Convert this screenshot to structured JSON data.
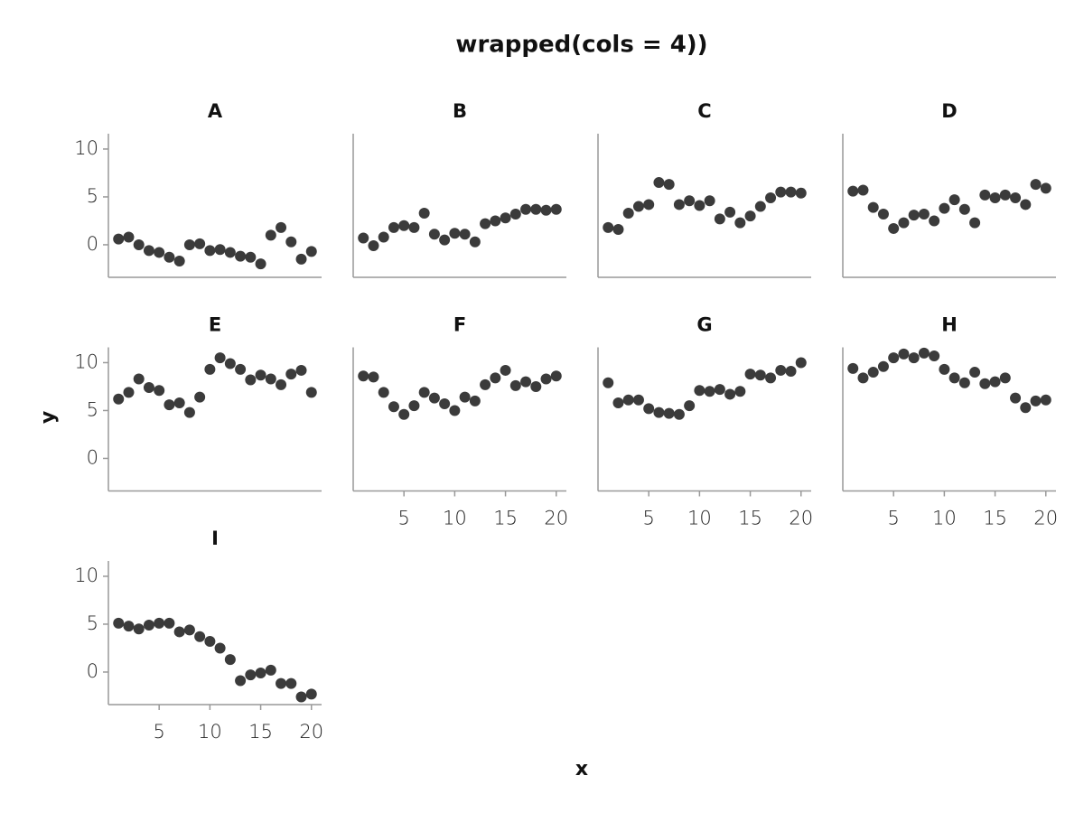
{
  "title": "wrapped(cols = 4))",
  "x_label": "x",
  "y_label": "y",
  "chart_data": [
    {
      "type": "scatter",
      "title": "A",
      "color": "#3b3b3b",
      "xlim": [
        0,
        21
      ],
      "ylim": [
        -3.4,
        11.6
      ],
      "yticks": [
        0,
        5,
        10
      ],
      "x": [
        1,
        2,
        3,
        4,
        5,
        6,
        7,
        8,
        9,
        10,
        11,
        12,
        13,
        14,
        15,
        16,
        17,
        18,
        19,
        20
      ],
      "values": [
        0.6,
        0.8,
        0,
        -0.6,
        -0.8,
        -1.3,
        -1.7,
        0,
        0.1,
        -0.6,
        -0.5,
        -0.8,
        -1.2,
        -1.3,
        -2.0,
        1.0,
        1.8,
        0.3,
        -1.5,
        -0.7
      ]
    },
    {
      "type": "scatter",
      "title": "B",
      "color": "#3b3b3b",
      "xlim": [
        0,
        21
      ],
      "ylim": [
        -3.4,
        11.6
      ],
      "x": [
        1,
        2,
        3,
        4,
        5,
        6,
        7,
        8,
        9,
        10,
        11,
        12,
        13,
        14,
        15,
        16,
        17,
        18,
        19,
        20
      ],
      "values": [
        0.7,
        -0.1,
        0.8,
        1.8,
        2.0,
        1.8,
        3.3,
        1.1,
        0.5,
        1.2,
        1.1,
        0.3,
        2.2,
        2.5,
        2.8,
        3.2,
        3.7,
        3.7,
        3.6,
        3.7
      ]
    },
    {
      "type": "scatter",
      "title": "C",
      "color": "#3b3b3b",
      "xlim": [
        0,
        21
      ],
      "ylim": [
        -3.4,
        11.6
      ],
      "x": [
        1,
        2,
        3,
        4,
        5,
        6,
        7,
        8,
        9,
        10,
        11,
        12,
        13,
        14,
        15,
        16,
        17,
        18,
        19,
        20
      ],
      "values": [
        1.8,
        1.6,
        3.3,
        4.0,
        4.2,
        6.5,
        6.3,
        4.2,
        4.6,
        4.1,
        4.6,
        2.7,
        3.4,
        2.3,
        3.0,
        4.0,
        4.9,
        5.5,
        5.5,
        5.4
      ]
    },
    {
      "type": "scatter",
      "title": "D",
      "color": "#3b3b3b",
      "xlim": [
        0,
        21
      ],
      "ylim": [
        -3.4,
        11.6
      ],
      "x": [
        1,
        2,
        3,
        4,
        5,
        6,
        7,
        8,
        9,
        10,
        11,
        12,
        13,
        14,
        15,
        16,
        17,
        18,
        19,
        20
      ],
      "values": [
        5.6,
        5.7,
        3.9,
        3.2,
        1.7,
        2.3,
        3.1,
        3.2,
        2.5,
        3.8,
        4.7,
        3.7,
        2.3,
        5.2,
        4.9,
        5.2,
        4.9,
        4.2,
        6.3,
        5.9
      ]
    },
    {
      "type": "scatter",
      "title": "E",
      "color": "#3b3b3b",
      "xlim": [
        0,
        21
      ],
      "ylim": [
        -3.4,
        11.6
      ],
      "yticks": [
        0,
        5,
        10
      ],
      "x": [
        1,
        2,
        3,
        4,
        5,
        6,
        7,
        8,
        9,
        10,
        11,
        12,
        13,
        14,
        15,
        16,
        17,
        18,
        19,
        20
      ],
      "values": [
        6.2,
        6.9,
        8.3,
        7.4,
        7.1,
        5.6,
        5.8,
        4.8,
        6.4,
        9.3,
        10.5,
        9.9,
        9.3,
        8.2,
        8.7,
        8.3,
        7.7,
        8.8,
        9.2,
        6.9
      ]
    },
    {
      "type": "scatter",
      "title": "F",
      "color": "#3b3b3b",
      "xlim": [
        0,
        21
      ],
      "ylim": [
        -3.4,
        11.6
      ],
      "xticks": [
        5,
        10,
        15,
        20
      ],
      "x": [
        1,
        2,
        3,
        4,
        5,
        6,
        7,
        8,
        9,
        10,
        11,
        12,
        13,
        14,
        15,
        16,
        17,
        18,
        19,
        20
      ],
      "values": [
        8.6,
        8.5,
        6.9,
        5.4,
        4.6,
        5.5,
        6.9,
        6.3,
        5.7,
        5.0,
        6.4,
        6.0,
        7.7,
        8.4,
        9.2,
        7.6,
        8.0,
        7.5,
        8.3,
        8.6
      ]
    },
    {
      "type": "scatter",
      "title": "G",
      "color": "#3b3b3b",
      "xlim": [
        0,
        21
      ],
      "ylim": [
        -3.4,
        11.6
      ],
      "xticks": [
        5,
        10,
        15,
        20
      ],
      "x": [
        1,
        2,
        3,
        4,
        5,
        6,
        7,
        8,
        9,
        10,
        11,
        12,
        13,
        14,
        15,
        16,
        17,
        18,
        19,
        20
      ],
      "values": [
        7.9,
        5.8,
        6.1,
        6.1,
        5.2,
        4.8,
        4.7,
        4.6,
        5.5,
        7.1,
        7.0,
        7.2,
        6.7,
        7.0,
        8.8,
        8.7,
        8.4,
        9.2,
        9.1,
        10.0
      ]
    },
    {
      "type": "scatter",
      "title": "H",
      "color": "#3b3b3b",
      "xlim": [
        0,
        21
      ],
      "ylim": [
        -3.4,
        11.6
      ],
      "xticks": [
        5,
        10,
        15,
        20
      ],
      "x": [
        1,
        2,
        3,
        4,
        5,
        6,
        7,
        8,
        9,
        10,
        11,
        12,
        13,
        14,
        15,
        16,
        17,
        18,
        19,
        20
      ],
      "values": [
        9.4,
        8.4,
        9.0,
        9.6,
        10.5,
        10.9,
        10.5,
        11.0,
        10.7,
        9.3,
        8.4,
        7.9,
        9.0,
        7.8,
        8.0,
        8.4,
        6.3,
        5.3,
        6.0,
        6.1
      ]
    },
    {
      "type": "scatter",
      "title": "I",
      "color": "#3b3b3b",
      "xlim": [
        0,
        21
      ],
      "ylim": [
        -3.4,
        11.6
      ],
      "yticks": [
        0,
        5,
        10
      ],
      "xticks": [
        5,
        10,
        15,
        20
      ],
      "x": [
        1,
        2,
        3,
        4,
        5,
        6,
        7,
        8,
        9,
        10,
        11,
        12,
        13,
        14,
        15,
        16,
        17,
        18,
        19,
        20
      ],
      "values": [
        5.1,
        4.8,
        4.5,
        4.9,
        5.1,
        5.1,
        4.2,
        4.4,
        3.7,
        3.2,
        2.5,
        1.3,
        -0.9,
        -0.3,
        -0.1,
        0.2,
        -1.2,
        -1.2,
        -2.6,
        -2.3
      ]
    }
  ]
}
